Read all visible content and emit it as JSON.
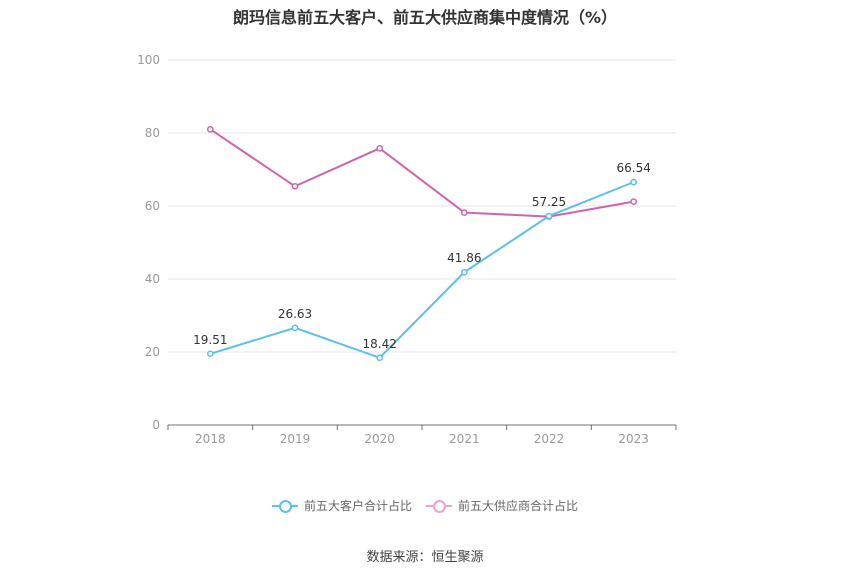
{
  "chart_data": {
    "type": "line",
    "title": "朗玛信息前五大客户、前五大供应商集中度情况（%）",
    "categories": [
      "2018",
      "2019",
      "2020",
      "2021",
      "2022",
      "2023"
    ],
    "ylim": [
      0,
      100
    ],
    "yticks": [
      0,
      20,
      40,
      60,
      80,
      100
    ],
    "grid": true,
    "legend_position": "bottom",
    "series": [
      {
        "name": "前五大客户合计占比",
        "color": "#5bc0eb",
        "values": [
          19.51,
          26.63,
          18.42,
          41.86,
          57.25,
          66.54
        ],
        "labels": [
          "19.51",
          "26.63",
          "18.42",
          "41.86",
          "57.25",
          "66.54"
        ]
      },
      {
        "name": "前五大供应商合计占比",
        "color": "#d063ab",
        "values": [
          81.0,
          65.4,
          75.8,
          58.2,
          57.1,
          61.2
        ]
      }
    ]
  },
  "source": "数据来源：恒生聚源"
}
